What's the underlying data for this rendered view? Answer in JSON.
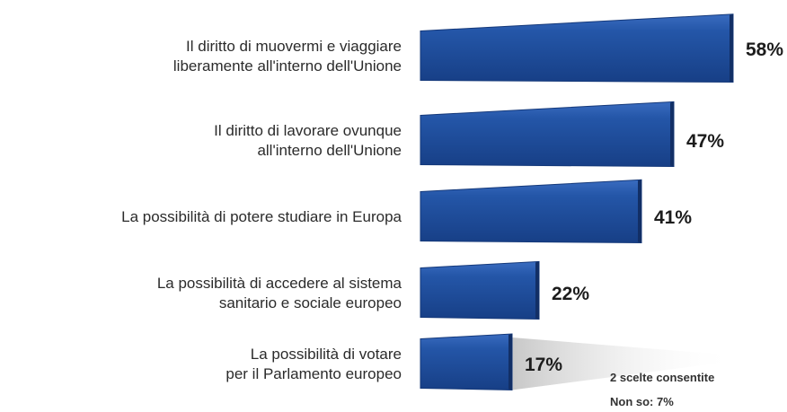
{
  "chart_data": {
    "type": "bar",
    "orientation": "horizontal",
    "categories": [
      [
        "Il diritto di muovermi e viaggiare",
        "liberamente all'interno dell'Unione"
      ],
      [
        "Il diritto di lavorare ovunque",
        "all'interno dell'Unione"
      ],
      [
        "La possibilità di potere studiare in Europa"
      ],
      [
        "La possibilità di accedere al sistema",
        "sanitario e sociale europeo"
      ],
      [
        "La possibilità di votare",
        "per il Parlamento europeo"
      ]
    ],
    "values": [
      58,
      47,
      41,
      22,
      17
    ],
    "value_labels": [
      "58%",
      "47%",
      "41%",
      "22%",
      "17%"
    ],
    "bar_color": "#1f4e9c",
    "bar_color_dark": "#173d7e",
    "notes": [
      "2 scelte consentite",
      "Non so: 7%"
    ]
  }
}
